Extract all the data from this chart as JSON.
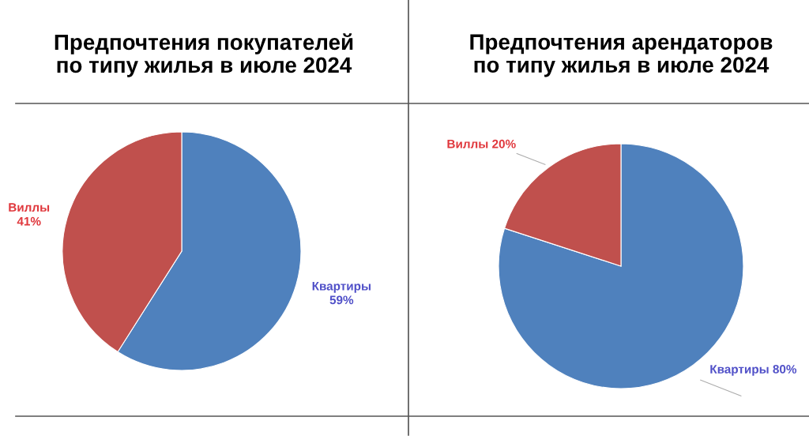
{
  "chart_data": [
    {
      "type": "pie",
      "title": "Предпочтения покупателей\nпо типу жилья в июле 2024",
      "categories": [
        "Квартиры",
        "Виллы"
      ],
      "values": [
        59,
        41
      ],
      "colors": [
        "#4f81bd",
        "#c0504d"
      ],
      "value_labels": [
        "59%",
        "41%"
      ],
      "legend": false
    },
    {
      "type": "pie",
      "title": "Предпочтения арендаторов\nпо типу жилья в июле 2024",
      "categories": [
        "Квартиры",
        "Виллы"
      ],
      "values": [
        80,
        20
      ],
      "colors": [
        "#4f81bd",
        "#c0504d"
      ],
      "value_labels": [
        "80%",
        "20%"
      ],
      "legend": false
    }
  ]
}
